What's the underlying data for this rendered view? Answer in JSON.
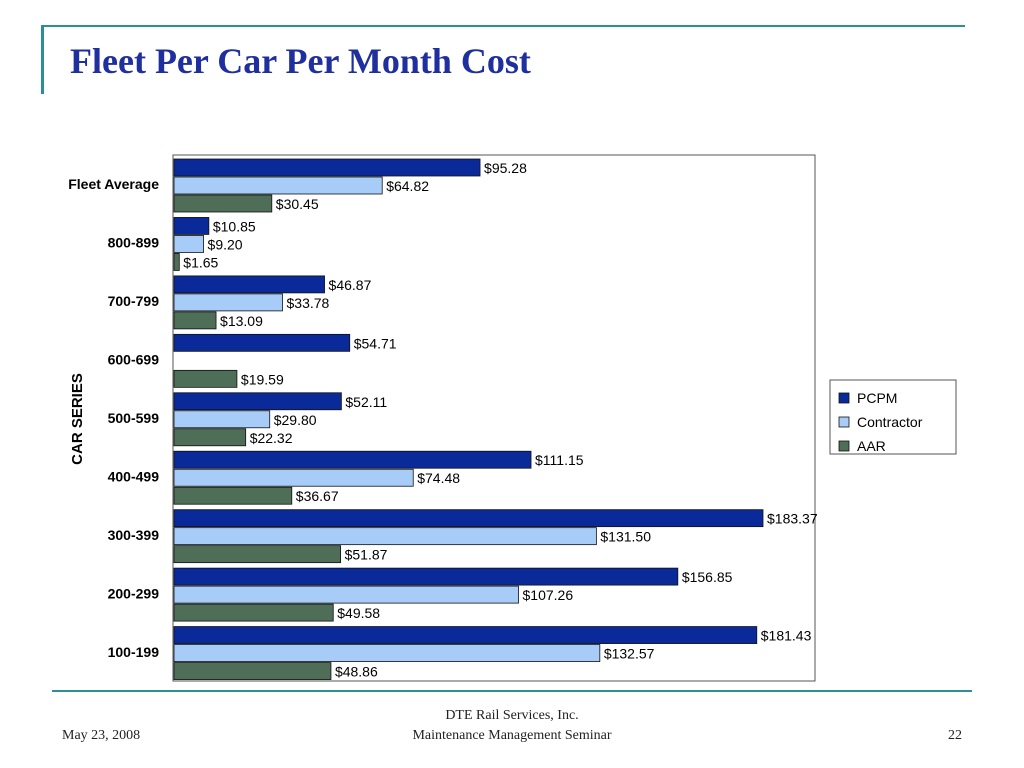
{
  "slide": {
    "title": "Fleet Per Car Per Month Cost",
    "footer": {
      "date": "May 23, 2008",
      "org_line1": "DTE Rail Services, Inc.",
      "org_line2": "Maintenance Management Seminar",
      "page": "22"
    }
  },
  "chart_data": {
    "type": "bar",
    "orientation": "horizontal",
    "title": "",
    "ylabel": "CAR SERIES",
    "xlabel": "",
    "xlim": [
      0,
      190
    ],
    "categories": [
      "Fleet Average",
      "800-899",
      "700-799",
      "600-699",
      "500-599",
      "400-499",
      "300-399",
      "200-299",
      "100-199"
    ],
    "series": [
      {
        "name": "PCPM",
        "color": "#0a2a9a",
        "values": [
          95.28,
          10.85,
          46.87,
          54.71,
          52.11,
          111.15,
          183.37,
          156.85,
          181.43
        ],
        "labels": [
          "$95.28",
          "$10.85",
          "$46.87",
          "$54.71",
          "$52.11",
          "$111.15",
          "$183.37",
          "$156.85",
          "$181.43"
        ]
      },
      {
        "name": "Contractor",
        "color": "#a6ccf7",
        "values": [
          64.82,
          9.2,
          33.78,
          null,
          29.8,
          74.48,
          131.5,
          107.26,
          132.57
        ],
        "labels": [
          "$64.82",
          "$9.20",
          "$33.78",
          "",
          "$29.80",
          "$74.48",
          "$131.50",
          "$107.26",
          "$132.57"
        ]
      },
      {
        "name": "AAR",
        "color": "#4e6e58",
        "values": [
          30.45,
          1.65,
          13.09,
          19.59,
          22.32,
          36.67,
          51.87,
          49.58,
          48.86
        ],
        "labels": [
          "$30.45",
          "$1.65",
          "$13.09",
          "$19.59",
          "$22.32",
          "$36.67",
          "$51.87",
          "$49.58",
          "$48.86"
        ]
      }
    ],
    "legend": {
      "placement": "right"
    },
    "grid": false
  }
}
